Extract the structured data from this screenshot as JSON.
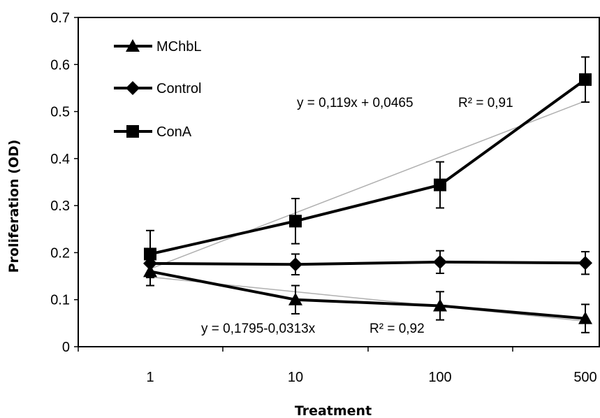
{
  "chart_data": {
    "type": "line",
    "title": "",
    "xlabel": "Treatment",
    "ylabel": "Proliferation (OD)",
    "ylim": [
      0,
      0.7
    ],
    "yticks": [
      "0",
      "0.1",
      "0.2",
      "0.3",
      "0.4",
      "0.5",
      "0.6",
      "0.7"
    ],
    "yticks_values": [
      0,
      0.1,
      0.2,
      0.3,
      0.4,
      0.5,
      0.6,
      0.7
    ],
    "categories": [
      "1",
      "10",
      "100",
      "500"
    ],
    "grid": false,
    "legend_position": "top-left",
    "series": [
      {
        "name": "MChbL",
        "marker": "triangle",
        "color": "#000000",
        "values": [
          0.16,
          0.1,
          0.087,
          0.06
        ],
        "errors": [
          0.03,
          0.03,
          0.03,
          0.03
        ]
      },
      {
        "name": "Control",
        "marker": "diamond",
        "color": "#000000",
        "values": [
          0.177,
          0.175,
          0.18,
          0.178
        ],
        "errors": [
          0.02,
          0.022,
          0.024,
          0.024
        ]
      },
      {
        "name": "ConA",
        "marker": "square",
        "color": "#000000",
        "values": [
          0.197,
          0.267,
          0.344,
          0.568
        ],
        "errors": [
          0.05,
          0.048,
          0.049,
          0.048
        ]
      }
    ],
    "trendlines": [
      {
        "series": "ConA",
        "intercept": 0.0465,
        "slope": 0.119,
        "equation": "y = 0,119x + 0,0465",
        "r2": "R² = 0,91",
        "color": "#b0b0b0"
      },
      {
        "series": "MChbL",
        "intercept": 0.1795,
        "slope": -0.0313,
        "equation": "y = 0,1795-0,0313x",
        "r2": "R² = 0,92",
        "color": "#b0b0b0"
      }
    ]
  }
}
